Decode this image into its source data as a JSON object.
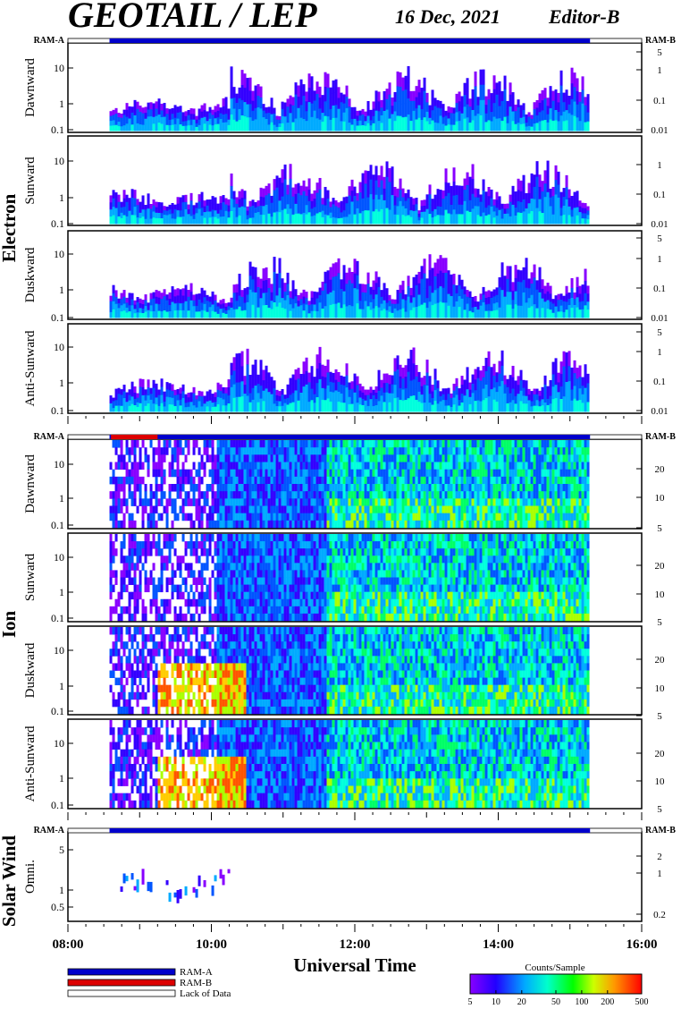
{
  "header": {
    "title": "GEOTAIL / LEP",
    "date": "16 Dec, 2021",
    "editor": "Editor-B"
  },
  "colors": {
    "ram_a": "#0000cc",
    "ram_b": "#dd0000",
    "frame": "#000000"
  },
  "ram_labels": {
    "left": "RAM-A",
    "right": "RAM-B"
  },
  "groups": [
    {
      "name": "Electron"
    },
    {
      "name": "Ion"
    },
    {
      "name": "Solar Wind"
    }
  ],
  "panels": [
    {
      "label": "Dawnward",
      "group": 0,
      "left_ticks": [
        "10",
        "1",
        "0.1"
      ],
      "right_ticks": [
        "5",
        "1",
        "0.1",
        "0.01"
      ]
    },
    {
      "label": "Sunward",
      "group": 0,
      "left_ticks": [
        "10",
        "1",
        "0.1"
      ],
      "right_ticks": [
        "1",
        "0.1",
        "0.01"
      ]
    },
    {
      "label": "Duskward",
      "group": 0,
      "left_ticks": [
        "10",
        "1",
        "0.1"
      ],
      "right_ticks": [
        "5",
        "1",
        "0.1",
        "0.01"
      ]
    },
    {
      "label": "Anti-Sunward",
      "group": 0,
      "left_ticks": [
        "10",
        "1",
        "0.1"
      ],
      "right_ticks": [
        "5",
        "1",
        "0.1",
        "0.01"
      ]
    },
    {
      "label": "Dawnward",
      "group": 1,
      "left_ticks": [
        "10",
        "1",
        "0.1"
      ],
      "right_ticks": [
        "20",
        "10",
        "5"
      ]
    },
    {
      "label": "Sunward",
      "group": 1,
      "left_ticks": [
        "10",
        "1",
        "0.1"
      ],
      "right_ticks": [
        "20",
        "10",
        "5"
      ]
    },
    {
      "label": "Duskward",
      "group": 1,
      "left_ticks": [
        "10",
        "1",
        "0.1"
      ],
      "right_ticks": [
        "20",
        "10",
        "5"
      ]
    },
    {
      "label": "Anti-Sunward",
      "group": 1,
      "left_ticks": [
        "10",
        "1",
        "0.1"
      ],
      "right_ticks": [
        "20",
        "10",
        "5"
      ]
    },
    {
      "label": "Omni.",
      "group": 2,
      "left_ticks": [
        "5",
        "1",
        "0.5"
      ],
      "right_ticks": [
        "2",
        "1",
        "0.2"
      ]
    }
  ],
  "chart_data": {
    "type": "heatmap",
    "title": "GEOTAIL / LEP",
    "xlabel": "Universal Time",
    "x_ticks": [
      "08:00",
      "10:00",
      "12:00",
      "14:00",
      "16:00"
    ],
    "x_range_hours": [
      8,
      16
    ],
    "data_coverage_hours": [
      8.58,
      15.28
    ],
    "ram_b_interval_hours": [
      [
        8.6,
        9.25
      ]
    ],
    "colorbar": {
      "label": "Counts/Sample",
      "ticks": [
        "5",
        "10",
        "20",
        "50",
        "100",
        "200",
        "500"
      ],
      "scale": "log",
      "range": [
        5,
        500
      ]
    }
  },
  "legend": {
    "items": [
      {
        "label": "RAM-A",
        "color": "#0000cc"
      },
      {
        "label": "RAM-B",
        "color": "#dd0000"
      },
      {
        "label": "Lack of Data",
        "color": "#ffffff"
      }
    ]
  }
}
